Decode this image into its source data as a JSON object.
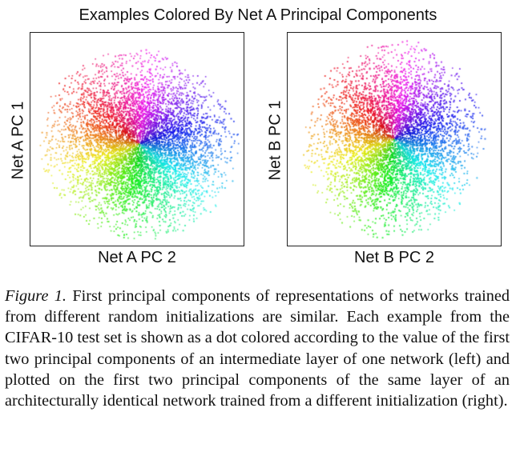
{
  "figure": {
    "title": "Examples Colored By Net A Principal Components",
    "panels": [
      {
        "xlabel": "Net A PC 2",
        "ylabel": "Net A PC 1"
      },
      {
        "xlabel": "Net B PC 2",
        "ylabel": "Net B PC 1"
      }
    ]
  },
  "caption": {
    "label": "Figure 1.",
    "text": "First principal components of representations of net­works trained from different random initializations are similar. Each example from the CIFAR-10 test set is shown as a dot col­ored according to the value of the first two principal components of an intermediate layer of one network (left) and plotted on the first two principal components of the same layer of an architecturally identical network trained from a different initialization (right)."
  },
  "chart_data": [
    {
      "type": "scatter",
      "title": "Examples Colored By Net A Principal Components",
      "xlabel": "Net A PC 2",
      "ylabel": "Net A PC 1",
      "color_encoding": "hue by angle of (Net A PC 1, Net A PC 2)",
      "grid": false,
      "legend": "none"
    },
    {
      "type": "scatter",
      "title": "Examples Colored By Net A Principal Components",
      "xlabel": "Net B PC 2",
      "ylabel": "Net B PC 1",
      "color_encoding": "hue by angle of (Net A PC 1, Net A PC 2)",
      "grid": false,
      "legend": "none"
    }
  ]
}
